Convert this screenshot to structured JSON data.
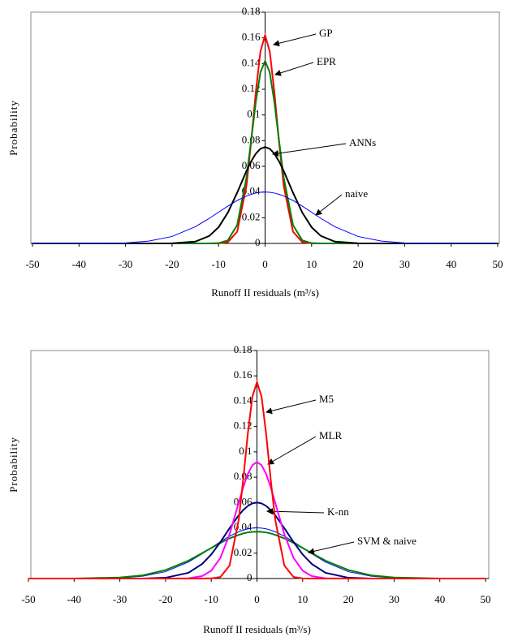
{
  "chart_data": [
    {
      "type": "line",
      "y_label": "Probability",
      "x_label": "Runoff II residuals (m³/s)",
      "xlim": [
        -50,
        50
      ],
      "xticks": [
        -50,
        -40,
        -30,
        -20,
        -10,
        0,
        10,
        20,
        30,
        40,
        50
      ],
      "ylim": [
        0,
        0.18
      ],
      "yticks": [
        0,
        0.02,
        0.04,
        0.06,
        0.08,
        0.1,
        0.12,
        0.14,
        0.16,
        0.18
      ],
      "x": [
        -50,
        -40,
        -30,
        -25,
        -20,
        -15,
        -12,
        -10,
        -8,
        -6,
        -4,
        -3,
        -2,
        -1,
        0,
        1,
        2,
        3,
        4,
        6,
        8,
        10,
        12,
        15,
        20,
        25,
        30,
        40,
        50
      ],
      "series": [
        {
          "name": "GP",
          "color": "#ff0000",
          "values": [
            0,
            0,
            0,
            0,
            0,
            0,
            0,
            0.0001,
            0.001,
            0.0091,
            0.045,
            0.0789,
            0.1176,
            0.1495,
            0.162,
            0.1495,
            0.1176,
            0.0789,
            0.045,
            0.0091,
            0.001,
            0.0001,
            0,
            0,
            0,
            0,
            0,
            0,
            0
          ]
        },
        {
          "name": "EPR",
          "color": "#008000",
          "values": [
            0,
            0,
            0,
            0,
            0,
            0,
            0,
            0.0002,
            0.0024,
            0.0143,
            0.0512,
            0.08,
            0.11,
            0.1332,
            0.142,
            0.1332,
            0.11,
            0.08,
            0.0512,
            0.0143,
            0.0024,
            0.0002,
            0,
            0,
            0,
            0,
            0,
            0,
            0
          ]
        },
        {
          "name": "ANNs",
          "color": "#000000",
          "values": [
            0,
            0,
            0,
            0,
            0.0001,
            0.0014,
            0.0058,
            0.0126,
            0.024,
            0.0395,
            0.0564,
            0.0639,
            0.0698,
            0.0737,
            0.075,
            0.0737,
            0.0698,
            0.0639,
            0.0564,
            0.0395,
            0.024,
            0.0126,
            0.0058,
            0.0014,
            0.0001,
            0,
            0,
            0,
            0
          ]
        },
        {
          "name": "naive",
          "color": "#0000ff",
          "values": [
            0,
            0,
            0.0004,
            0.0018,
            0.0054,
            0.013,
            0.0195,
            0.0243,
            0.029,
            0.0334,
            0.0369,
            0.0382,
            0.0392,
            0.0398,
            0.04,
            0.0398,
            0.0392,
            0.0382,
            0.0369,
            0.0334,
            0.029,
            0.0243,
            0.0195,
            0.013,
            0.0054,
            0.0018,
            0.0004,
            0,
            0
          ]
        }
      ]
    },
    {
      "type": "line",
      "y_label": "Probability",
      "x_label": "Runoff II residuals (m³/s)",
      "xlim": [
        -50,
        50
      ],
      "xticks": [
        -50,
        -40,
        -30,
        -20,
        -10,
        0,
        10,
        20,
        30,
        40,
        50
      ],
      "ylim": [
        0,
        0.18
      ],
      "yticks": [
        0,
        0.02,
        0.04,
        0.06,
        0.08,
        0.1,
        0.12,
        0.14,
        0.16,
        0.18
      ],
      "x": [
        -50,
        -40,
        -30,
        -25,
        -20,
        -15,
        -12,
        -10,
        -8,
        -6,
        -4,
        -3,
        -2,
        -1,
        0,
        1,
        2,
        3,
        4,
        6,
        8,
        10,
        12,
        15,
        20,
        25,
        30,
        40,
        50
      ],
      "series": [
        {
          "color": "#0000ff",
          "values": [
            0,
            0,
            0.0004,
            0.0018,
            0.0054,
            0.013,
            0.0195,
            0.0243,
            0.029,
            0.0334,
            0.0369,
            0.0382,
            0.0392,
            0.0398,
            0.04,
            0.0398,
            0.0392,
            0.0382,
            0.0369,
            0.0334,
            0.029,
            0.0243,
            0.0195,
            0.013,
            0.0054,
            0.0018,
            0.0004,
            0,
            0
          ]
        },
        {
          "name": "SVM & naive",
          "color": "#008000",
          "values": [
            0,
            0,
            0.0008,
            0.0025,
            0.0067,
            0.0141,
            0.02,
            0.0241,
            0.0281,
            0.0317,
            0.0345,
            0.0356,
            0.0364,
            0.0368,
            0.037,
            0.0368,
            0.0364,
            0.0356,
            0.0345,
            0.0317,
            0.0281,
            0.0241,
            0.02,
            0.0141,
            0.0067,
            0.0025,
            0.0008,
            0,
            0
          ]
        },
        {
          "name": "K-nn",
          "color": "#000080",
          "values": [
            0,
            0,
            0,
            0,
            0.0006,
            0.0045,
            0.0115,
            0.019,
            0.0288,
            0.0397,
            0.0499,
            0.0541,
            0.0573,
            0.0593,
            0.06,
            0.0593,
            0.0573,
            0.0541,
            0.0499,
            0.0397,
            0.0288,
            0.019,
            0.0115,
            0.0045,
            0.0006,
            0,
            0,
            0,
            0
          ]
        },
        {
          "name": "MLR",
          "color": "#ff00ff",
          "values": [
            0,
            0,
            0,
            0,
            0,
            0.0002,
            0.0019,
            0.0062,
            0.0163,
            0.0348,
            0.0597,
            0.0721,
            0.0826,
            0.0895,
            0.092,
            0.0895,
            0.0826,
            0.0721,
            0.0597,
            0.0348,
            0.0163,
            0.0062,
            0.0019,
            0.0002,
            0,
            0,
            0,
            0,
            0
          ]
        },
        {
          "name": "M5",
          "color": "#ff0000",
          "values": [
            0,
            0,
            0,
            0,
            0,
            0,
            0,
            0.0001,
            0.0012,
            0.0102,
            0.0462,
            0.0784,
            0.1145,
            0.1437,
            0.155,
            0.1437,
            0.1145,
            0.0784,
            0.0462,
            0.0102,
            0.0012,
            0.0001,
            0,
            0,
            0,
            0,
            0,
            0,
            0
          ]
        }
      ]
    }
  ]
}
